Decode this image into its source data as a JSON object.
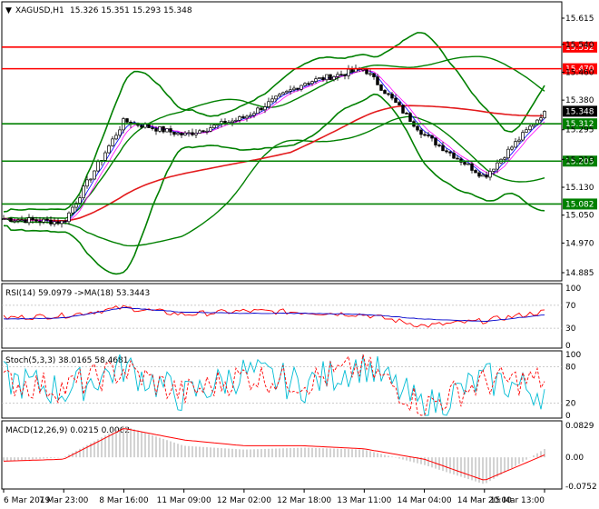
{
  "header": {
    "symbol": "XAGUSD,H1",
    "ohlc": "15.326 15.351 15.293 15.348"
  },
  "rsi": {
    "label": "RSI(14) 59.0979",
    "ma_label": "->MA(18) 53.3443",
    "ticks": [
      "100",
      "70",
      "30",
      "0"
    ]
  },
  "stoch": {
    "label": "Stoch(5,3,3) 38.0165 58.4681",
    "ticks": [
      "100",
      "80",
      "20",
      "0"
    ]
  },
  "macd": {
    "label": "MACD(12,26,9) 0.0215 0.0062",
    "ticks": [
      "0.0829",
      "0.00",
      "-0.0752"
    ]
  },
  "colors": {
    "resistance": "#ff0000",
    "support": "#008000",
    "bollinger": "#008000",
    "ma_long": "#e31a1c",
    "ma_short_blue": "#0000ff",
    "ma_short_pink": "#ff00ff",
    "rsi_line": "#ff0000",
    "rsi_ma": "#0000cc",
    "stoch_main": "#00bcd4",
    "stoch_signal": "#ff0000",
    "macd_hist": "#c0c0c0",
    "macd_signal": "#ff0000"
  },
  "chart_data": [
    {
      "type": "line",
      "ylim": [
        14.885,
        15.615
      ],
      "yticks": [
        "15.615",
        "15.540",
        "15.460",
        "15.380",
        "15.295",
        "15.210",
        "15.130",
        "15.050",
        "14.970",
        "14.885"
      ],
      "x": [
        "6 Mar 2019",
        "7 Mar 23:00",
        "8 Mar 16:00",
        "11 Mar 09:00",
        "12 Mar 02:00",
        "12 Mar 18:00",
        "13 Mar 11:00",
        "14 Mar 04:00",
        "14 Mar 20:00",
        "15 Mar 13:00"
      ],
      "price_approx": [
        15.04,
        15.03,
        15.32,
        15.28,
        15.33,
        15.43,
        15.47,
        15.28,
        15.16,
        15.348
      ],
      "levels": [
        {
          "value": 15.532,
          "label": "15.532",
          "kind": "resistance"
        },
        {
          "value": 15.47,
          "label": "15.470",
          "kind": "resistance"
        },
        {
          "value": 15.312,
          "label": "15.312",
          "kind": "support"
        },
        {
          "value": 15.205,
          "label": "15.205",
          "kind": "support"
        },
        {
          "value": 15.082,
          "label": "15.082",
          "kind": "support"
        }
      ],
      "current_price": {
        "value": 15.348,
        "label": "15.348"
      }
    },
    {
      "type": "line",
      "name": "RSI(14)",
      "ylim": [
        0,
        100
      ],
      "guides": [
        70,
        30
      ],
      "rsi": [
        48,
        52,
        66,
        54,
        60,
        58,
        54,
        34,
        43,
        59
      ],
      "rsi_ma": [
        46,
        48,
        66,
        58,
        56,
        56,
        54,
        46,
        42,
        53
      ]
    },
    {
      "type": "line",
      "name": "Stoch(5,3,3)",
      "ylim": [
        0,
        100
      ],
      "guides": [
        80,
        20
      ],
      "main": [
        60,
        40,
        80,
        30,
        70,
        50,
        85,
        10,
        60,
        38
      ],
      "signal": [
        55,
        45,
        75,
        35,
        65,
        55,
        80,
        15,
        55,
        58
      ]
    },
    {
      "type": "bar",
      "name": "MACD(12,26,9)",
      "ylim": [
        -0.0752,
        0.0829
      ],
      "histogram": [
        -0.01,
        0.0,
        0.082,
        0.03,
        0.02,
        0.025,
        0.02,
        -0.02,
        -0.07,
        0.0215
      ],
      "signal": [
        -0.01,
        -0.005,
        0.075,
        0.045,
        0.03,
        0.03,
        0.022,
        -0.005,
        -0.06,
        0.0062
      ]
    }
  ]
}
